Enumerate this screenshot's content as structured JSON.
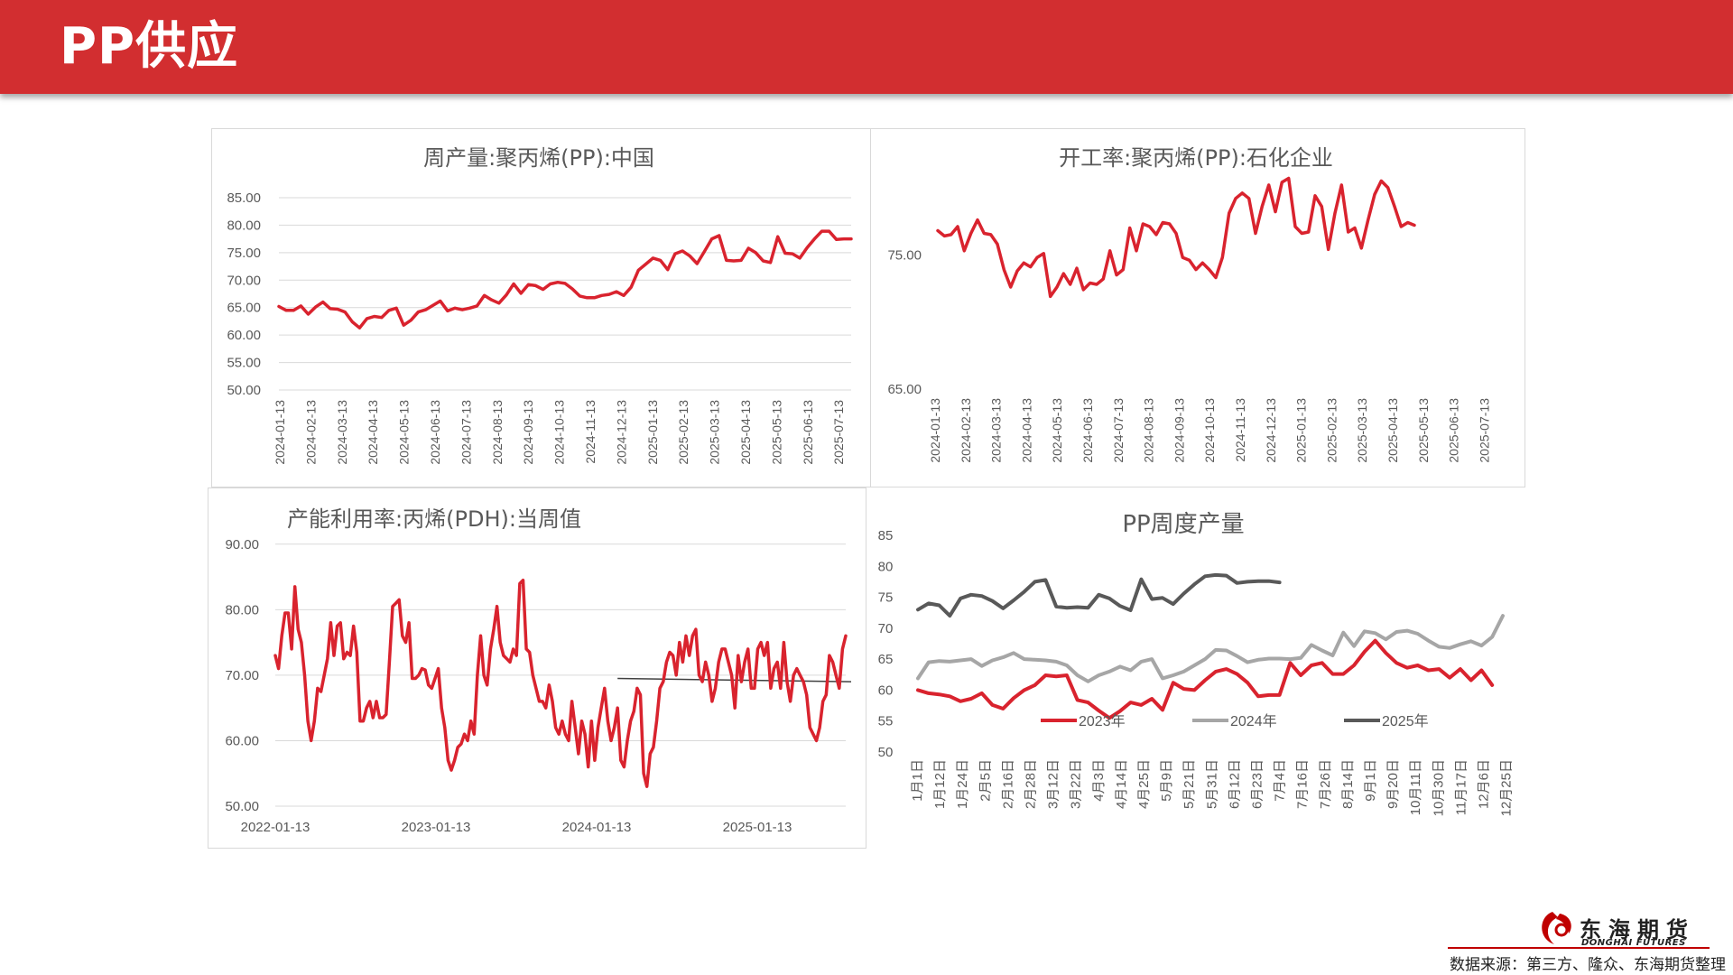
{
  "page": {
    "title": "PP供应",
    "source": "数据来源：第三方、隆众、东海期货整理",
    "brand_cn": "东海期货",
    "brand_en": "DONGHAI FUTURES"
  },
  "colors": {
    "header": "#d22e30",
    "red": "#d9232e",
    "gray": "#a6a6a6",
    "dark": "#595959",
    "grid": "#d9d9d9",
    "avg": "#404040"
  },
  "chart_data": [
    {
      "type": "line",
      "title": "周产量:聚丙烯(PP):中国",
      "ylim": [
        50,
        85
      ],
      "yticks": [
        "85.00",
        "80.00",
        "75.00",
        "70.00",
        "65.00",
        "60.00",
        "55.00",
        "50.00"
      ],
      "xticks": [
        "2024-01-13",
        "2024-02-13",
        "2024-03-13",
        "2024-04-13",
        "2024-05-13",
        "2024-06-13",
        "2024-07-13",
        "2024-08-13",
        "2024-09-13",
        "2024-10-13",
        "2024-11-13",
        "2024-12-13",
        "2025-01-13",
        "2025-02-13",
        "2025-03-13",
        "2025-04-13",
        "2025-05-13",
        "2025-06-13",
        "2025-07-13"
      ],
      "series": [
        {
          "name": "周产量",
          "values": [
            65.2,
            64.5,
            64.5,
            65.3,
            63.8,
            65.1,
            66.0,
            64.8,
            64.7,
            64.2,
            62.4,
            61.3,
            63.0,
            63.4,
            63.2,
            64.5,
            64.9,
            61.8,
            62.7,
            64.2,
            64.6,
            65.4,
            66.2,
            64.4,
            64.9,
            64.6,
            64.9,
            65.3,
            67.2,
            66.4,
            65.8,
            67.3,
            69.3,
            67.6,
            69.2,
            69.0,
            68.3,
            69.3,
            69.6,
            69.4,
            68.4,
            67.1,
            66.8,
            66.8,
            67.2,
            67.4,
            67.9,
            67.2,
            68.7,
            71.8,
            72.9,
            74.0,
            73.6,
            71.9,
            74.8,
            75.3,
            74.4,
            73.0,
            75.2,
            77.5,
            78.1,
            73.6,
            73.5,
            73.6,
            75.8,
            75.0,
            73.5,
            73.2,
            77.9,
            74.9,
            74.8,
            74.0,
            75.9,
            77.5,
            78.9,
            78.9,
            77.4,
            77.5,
            77.5
          ]
        }
      ]
    },
    {
      "type": "line",
      "title": "开工率:聚丙烯(PP):石化企业",
      "ylim": [
        65,
        81
      ],
      "yticks": [
        "75.00",
        "65.00"
      ],
      "xticks": [
        "2024-01-13",
        "2024-02-13",
        "2024-03-13",
        "2024-04-13",
        "2024-05-13",
        "2024-06-13",
        "2024-07-13",
        "2024-08-13",
        "2024-09-13",
        "2024-10-13",
        "2024-11-13",
        "2024-12-13",
        "2025-01-13",
        "2025-02-13",
        "2025-03-13",
        "2025-04-13",
        "2025-05-13",
        "2025-06-13",
        "2025-07-13"
      ],
      "series": [
        {
          "name": "开工率",
          "values": [
            76.8,
            76.4,
            76.5,
            77.1,
            75.3,
            76.6,
            77.6,
            76.6,
            76.5,
            75.8,
            73.9,
            72.6,
            73.8,
            74.4,
            74.1,
            74.8,
            75.1,
            71.9,
            72.6,
            73.6,
            72.8,
            74.0,
            72.4,
            72.9,
            72.8,
            73.2,
            75.3,
            73.5,
            73.9,
            77.0,
            75.3,
            77.3,
            77.1,
            76.5,
            77.4,
            77.3,
            76.6,
            74.8,
            74.6,
            73.9,
            74.4,
            73.9,
            73.3,
            74.8,
            78.1,
            79.2,
            79.6,
            79.2,
            76.6,
            78.6,
            80.2,
            78.2,
            80.4,
            80.7,
            77.1,
            76.6,
            76.7,
            79.4,
            78.6,
            75.4,
            78.1,
            80.2,
            76.7,
            77.0,
            75.5,
            77.6,
            79.5,
            80.5,
            80.0,
            78.6,
            77.1,
            77.4,
            77.2
          ]
        }
      ]
    },
    {
      "type": "line",
      "title": "产能利用率:丙烯(PDH):当周值",
      "ylim": [
        50,
        93
      ],
      "yticks": [
        "90.00",
        "80.00",
        "70.00",
        "60.00",
        "50.00"
      ],
      "xticks": [
        "2022-01-13",
        "2023-01-13",
        "2024-01-13",
        "2025-01-13"
      ],
      "reference_line": {
        "from_index": 105,
        "value_start": 69.5,
        "value_end": 69.0
      },
      "series": [
        {
          "name": "产能利用率",
          "values": [
            73,
            71,
            76,
            79.5,
            79.5,
            74,
            83.5,
            77,
            75,
            70,
            63,
            60,
            63,
            68,
            67.5,
            70,
            72.5,
            78,
            73,
            77.5,
            78,
            72.5,
            73.5,
            73,
            77.5,
            73.5,
            63,
            63,
            65,
            66,
            63.5,
            66,
            63.5,
            63.5,
            64,
            72,
            80.5,
            81,
            81.5,
            76,
            75,
            78,
            69.5,
            69.5,
            70,
            71,
            70.8,
            68.5,
            68,
            69.5,
            71,
            65,
            62,
            57,
            55.5,
            57,
            59,
            59.5,
            61,
            60,
            63,
            61,
            70,
            76,
            70,
            68.5,
            74,
            77,
            80.5,
            75,
            73,
            72.5,
            72,
            74,
            73,
            84,
            84.5,
            74,
            73.5,
            70,
            68,
            66,
            66,
            65,
            68.5,
            66,
            62,
            61,
            63,
            61,
            60,
            66,
            62,
            58,
            63,
            61,
            56,
            63,
            57,
            62,
            65,
            68,
            63,
            60,
            62,
            65,
            57,
            56,
            60,
            63,
            64.5,
            68,
            67,
            55,
            53,
            58,
            59,
            63,
            68,
            69,
            72,
            73.5,
            73,
            70,
            75,
            72,
            76,
            73,
            76,
            77,
            70,
            69,
            72,
            70,
            66,
            68,
            72,
            74,
            74,
            72,
            70,
            65,
            73,
            69,
            72,
            74,
            68,
            68,
            74,
            75,
            73,
            75,
            68,
            71,
            72,
            68,
            75,
            69,
            66,
            70,
            71,
            70,
            69,
            67,
            62,
            61,
            60,
            62,
            66,
            67,
            73,
            72,
            70,
            68,
            74,
            76
          ]
        }
      ]
    },
    {
      "type": "line",
      "title": "PP周度产量",
      "ylim": [
        50,
        85
      ],
      "yticks": [
        "85",
        "80",
        "75",
        "70",
        "65",
        "60",
        "55",
        "50"
      ],
      "xticks": [
        "1月1日",
        "1月12日",
        "1月24日",
        "2月5日",
        "2月16日",
        "2月28日",
        "3月12日",
        "3月22日",
        "4月3日",
        "4月14日",
        "4月25日",
        "5月9日",
        "5月21日",
        "5月31日",
        "6月12日",
        "6月23日",
        "7月4日",
        "7月16日",
        "7月26日",
        "8月14日",
        "9月1日",
        "9月20日",
        "10月11日",
        "10月30日",
        "11月17日",
        "12月6日",
        "12月25日"
      ],
      "series": [
        {
          "name": "2023年",
          "values": [
            60,
            59.5,
            59.3,
            59,
            58.2,
            58.6,
            59.5,
            57.6,
            57,
            58.7,
            60,
            60.8,
            62.4,
            62.2,
            62.4,
            58.4,
            58,
            56.7,
            55.5,
            56.6,
            58,
            57.6,
            58.6,
            56.8,
            61.2,
            60.2,
            60,
            61.6,
            63,
            63.4,
            62.6,
            61.2,
            59,
            59.2,
            59.2,
            64.4,
            62.4,
            64,
            64.4,
            62.6,
            62.6,
            64,
            66.2,
            68,
            66,
            64.4,
            63.6,
            64,
            63.2,
            63.4,
            62,
            63.4,
            61.6,
            63.2,
            60.8
          ]
        },
        {
          "name": "2024年",
          "values": [
            61.9,
            64.5,
            64.7,
            64.6,
            64.8,
            65,
            63.9,
            64.8,
            65.3,
            66,
            65,
            64.9,
            64.8,
            64.6,
            64,
            62.4,
            61.4,
            62.4,
            63,
            63.8,
            63.2,
            64.6,
            65,
            61.9,
            62.4,
            63,
            64,
            65,
            66.5,
            66.4,
            65.5,
            64.5,
            64.9,
            65.1,
            65.1,
            65,
            65.2,
            67.3,
            66.4,
            65.6,
            69.3,
            67.1,
            69.5,
            69.2,
            68.2,
            69.4,
            69.6,
            69.1,
            68,
            67,
            66.8,
            67.4,
            67.9,
            67.2,
            68.6,
            72
          ]
        },
        {
          "name": "2025年",
          "values": [
            73,
            74,
            73.7,
            72,
            74.8,
            75.4,
            75.2,
            74.4,
            73.2,
            74.5,
            75.9,
            77.5,
            77.8,
            73.5,
            73.3,
            73.4,
            73.3,
            75.4,
            74.8,
            73.6,
            72.9,
            77.9,
            74.7,
            74.9,
            73.9,
            75.6,
            77.1,
            78.4,
            78.6,
            78.5,
            77.3,
            77.5,
            77.6,
            77.6,
            77.4
          ]
        }
      ]
    }
  ]
}
